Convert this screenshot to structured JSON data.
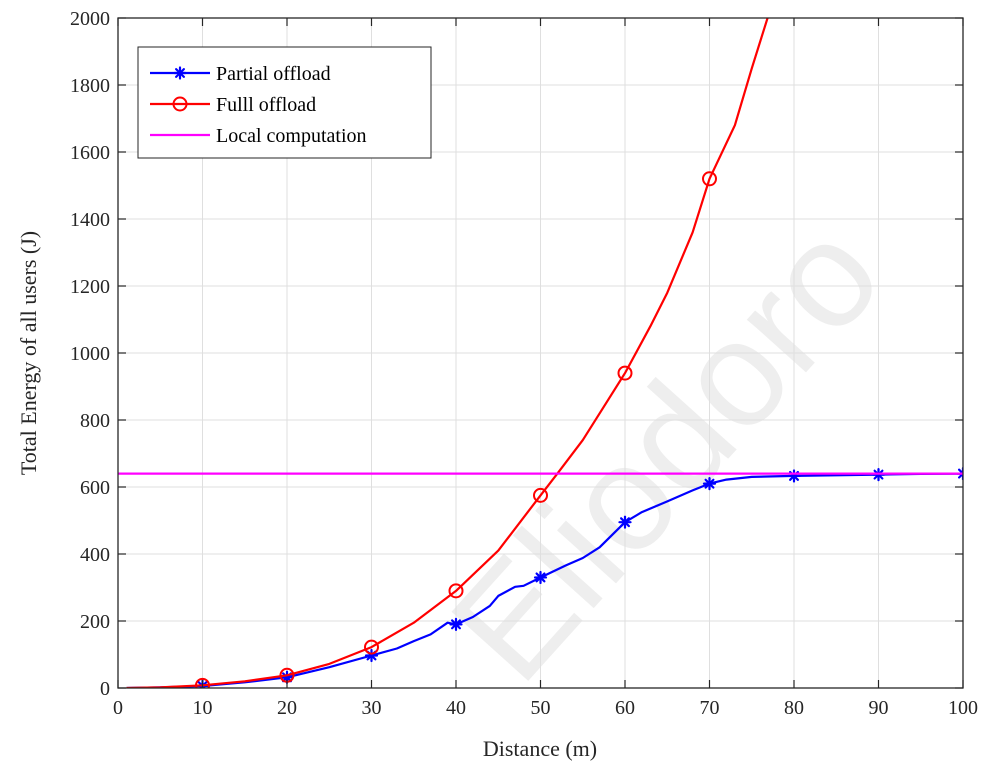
{
  "watermark": "Eliodoro",
  "chart_data": {
    "type": "line",
    "title": "",
    "xlabel": "Distance (m)",
    "ylabel": "Total Energy of all users (J)",
    "xlim": [
      0,
      100
    ],
    "ylim": [
      0,
      2000
    ],
    "xticks": [
      0,
      10,
      20,
      30,
      40,
      50,
      60,
      70,
      80,
      90,
      100
    ],
    "yticks": [
      0,
      200,
      400,
      600,
      800,
      1000,
      1200,
      1400,
      1600,
      1800,
      2000
    ],
    "grid": true,
    "legend_position": "top-left",
    "series": [
      {
        "name": "Partial offload",
        "color": "#0000ff",
        "marker": "asterisk",
        "curve": [
          [
            1,
            0
          ],
          [
            5,
            2
          ],
          [
            10,
            6
          ],
          [
            15,
            17
          ],
          [
            20,
            32
          ],
          [
            25,
            62
          ],
          [
            30,
            97
          ],
          [
            33,
            118
          ],
          [
            35,
            140
          ],
          [
            37,
            160
          ],
          [
            39,
            195
          ],
          [
            40,
            190
          ],
          [
            42,
            212
          ],
          [
            44,
            245
          ],
          [
            45,
            275
          ],
          [
            47,
            302
          ],
          [
            48,
            305
          ],
          [
            50,
            330
          ],
          [
            53,
            366
          ],
          [
            55,
            388
          ],
          [
            57,
            420
          ],
          [
            60,
            495
          ],
          [
            62,
            525
          ],
          [
            65,
            557
          ],
          [
            68,
            590
          ],
          [
            70,
            610
          ],
          [
            72,
            622
          ],
          [
            75,
            630
          ],
          [
            80,
            633
          ],
          [
            85,
            635
          ],
          [
            90,
            637
          ],
          [
            95,
            639
          ],
          [
            100,
            640
          ]
        ],
        "markers": [
          [
            10,
            6
          ],
          [
            20,
            32
          ],
          [
            30,
            97
          ],
          [
            40,
            190
          ],
          [
            50,
            330
          ],
          [
            60,
            495
          ],
          [
            70,
            610
          ],
          [
            80,
            633
          ],
          [
            90,
            637
          ],
          [
            100,
            640
          ]
        ]
      },
      {
        "name": "Fulll offload",
        "color": "#ff0000",
        "marker": "circle",
        "curve": [
          [
            1,
            0
          ],
          [
            5,
            2
          ],
          [
            10,
            8
          ],
          [
            15,
            20
          ],
          [
            20,
            38
          ],
          [
            25,
            72
          ],
          [
            30,
            122
          ],
          [
            35,
            195
          ],
          [
            40,
            290
          ],
          [
            45,
            410
          ],
          [
            50,
            575
          ],
          [
            52,
            640
          ],
          [
            55,
            740
          ],
          [
            58,
            860
          ],
          [
            60,
            940
          ],
          [
            63,
            1080
          ],
          [
            65,
            1180
          ],
          [
            68,
            1360
          ],
          [
            70,
            1520
          ],
          [
            73,
            1680
          ],
          [
            75,
            1850
          ],
          [
            77,
            2010
          ]
        ],
        "markers": [
          [
            10,
            8
          ],
          [
            20,
            38
          ],
          [
            30,
            122
          ],
          [
            40,
            290
          ],
          [
            50,
            575
          ],
          [
            60,
            940
          ],
          [
            70,
            1520
          ]
        ]
      },
      {
        "name": "Local computation",
        "color": "#ff00ff",
        "marker": "none",
        "curve": [
          [
            0,
            640
          ],
          [
            100,
            640
          ]
        ],
        "markers": []
      }
    ]
  }
}
